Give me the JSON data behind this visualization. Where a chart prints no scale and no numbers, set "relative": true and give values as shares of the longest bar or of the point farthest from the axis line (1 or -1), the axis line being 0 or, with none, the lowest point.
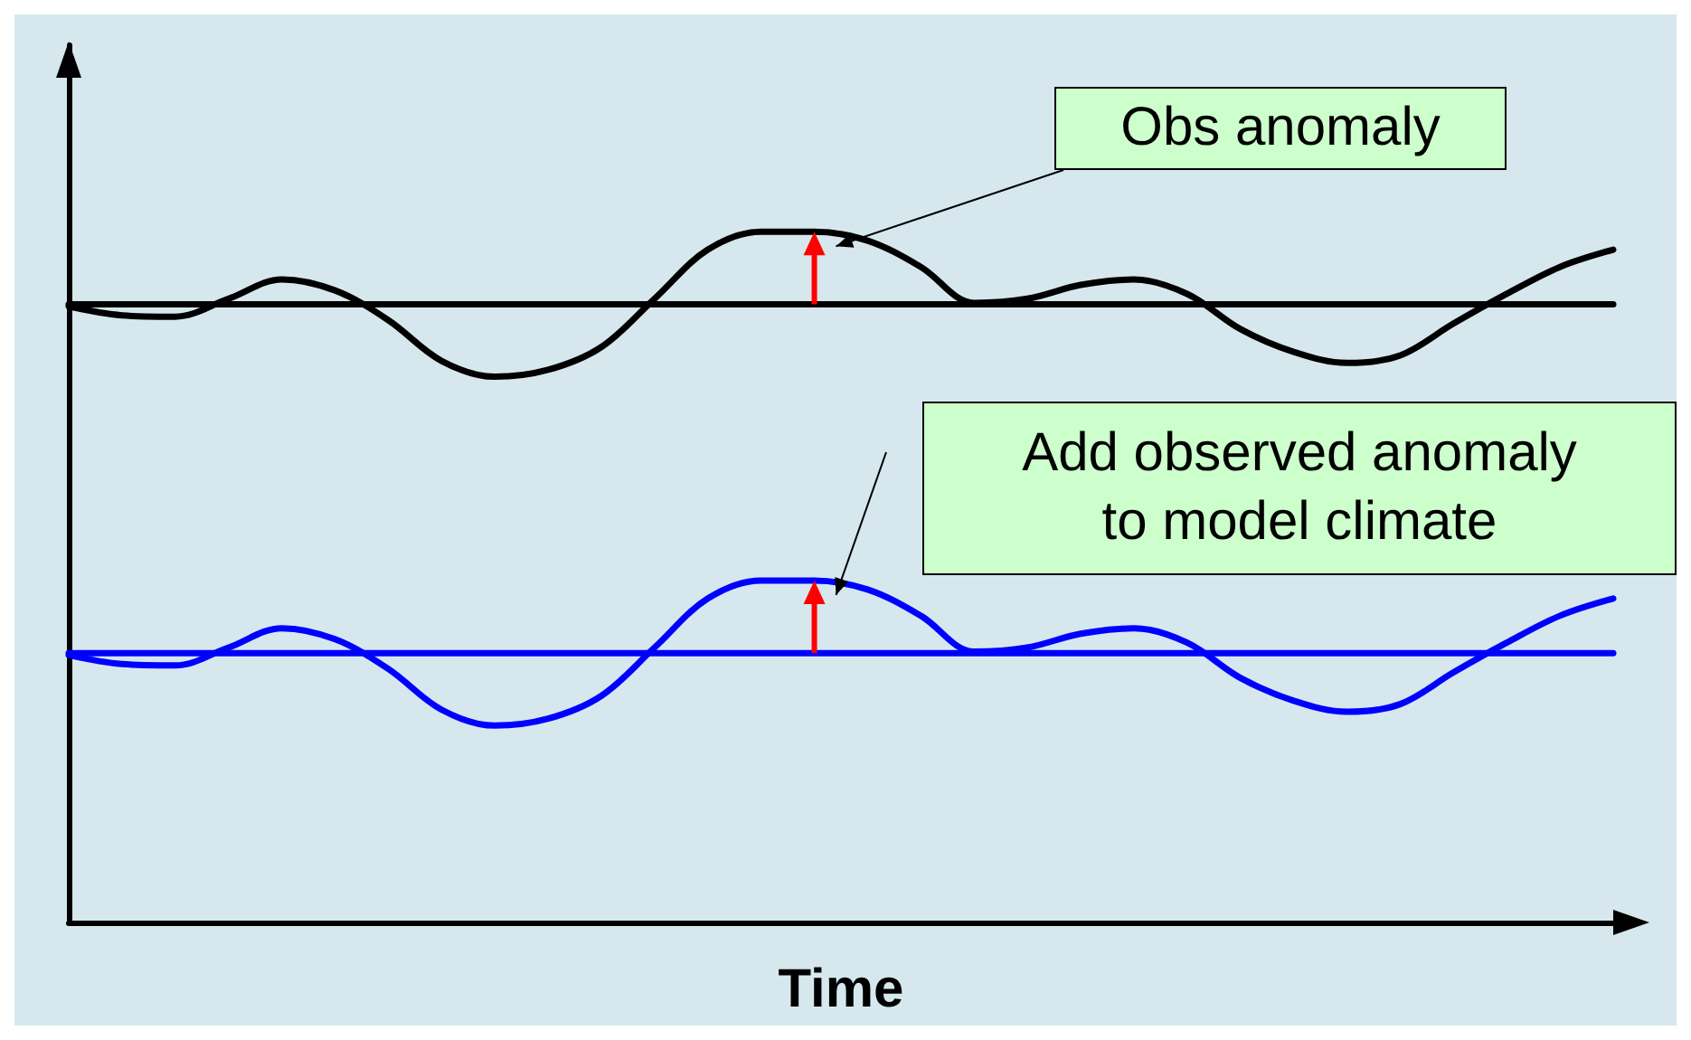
{
  "chart_data": {
    "type": "line",
    "relative": true,
    "xlabel": "Time",
    "categories": [
      null,
      null,
      null,
      null,
      null,
      null,
      null,
      null,
      null,
      null,
      null,
      null,
      null,
      null,
      null,
      null,
      null,
      null,
      null,
      null,
      null,
      null,
      null,
      null,
      null,
      null,
      null,
      null,
      null,
      null
    ],
    "series": [
      {
        "color": "#000000",
        "values": [
          0.892,
          0.879,
          0.877,
          0.903,
          0.931,
          0.915,
          0.872,
          0.813,
          0.79,
          0.8,
          0.833,
          0.903,
          0.974,
          1.0,
          1.0,
          0.987,
          0.949,
          0.897,
          0.903,
          0.923,
          0.931,
          0.91,
          0.859,
          0.826,
          0.81,
          0.821,
          0.867,
          0.91,
          0.949,
          0.974
        ]
      },
      {
        "color": "#000000",
        "values": [
          0.895,
          0.895,
          0.895,
          0.895,
          0.895,
          0.895,
          0.895,
          0.895,
          0.895,
          0.895,
          0.895,
          0.895,
          0.895,
          0.895,
          0.895,
          0.895,
          0.895,
          0.895,
          0.895,
          0.895,
          0.895,
          0.895,
          0.895,
          0.895,
          0.895,
          0.895,
          0.895,
          0.895,
          0.895,
          0.895
        ]
      },
      {
        "color": "#0000ff",
        "values": [
          0.387,
          0.374,
          0.372,
          0.398,
          0.426,
          0.41,
          0.367,
          0.308,
          0.285,
          0.295,
          0.328,
          0.398,
          0.469,
          0.495,
          0.495,
          0.482,
          0.444,
          0.392,
          0.398,
          0.418,
          0.426,
          0.405,
          0.354,
          0.321,
          0.305,
          0.316,
          0.362,
          0.405,
          0.444,
          0.469
        ]
      },
      {
        "color": "#0000ff",
        "values": [
          0.39,
          0.39,
          0.39,
          0.39,
          0.39,
          0.39,
          0.39,
          0.39,
          0.39,
          0.39,
          0.39,
          0.39,
          0.39,
          0.39,
          0.39,
          0.39,
          0.39,
          0.39,
          0.39,
          0.39,
          0.39,
          0.39,
          0.39,
          0.39,
          0.39,
          0.39,
          0.39,
          0.39,
          0.39,
          0.39
        ]
      }
    ],
    "annotations": [
      "Obs anomaly",
      "Add observed anomaly\nto model climate"
    ],
    "grid": false,
    "marker": "none",
    "line_style": "solid"
  }
}
